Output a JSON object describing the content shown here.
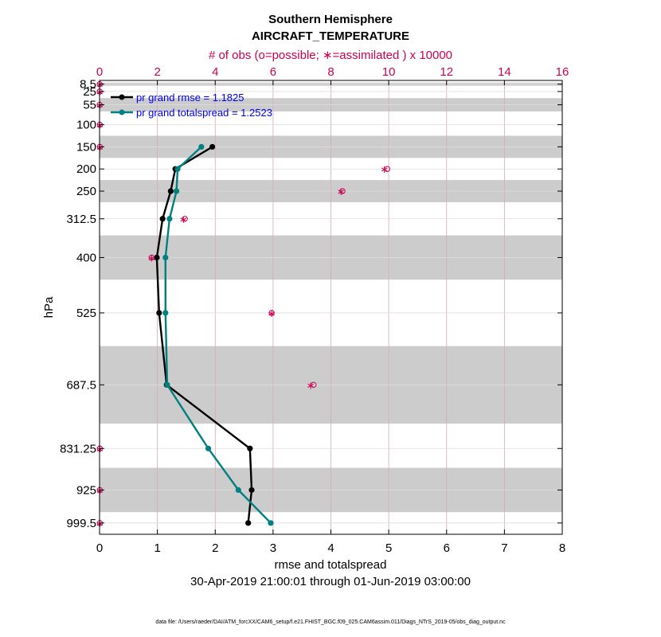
{
  "chart_data": {
    "type": "line",
    "title": "Southern Hemisphere",
    "subtitle": "AIRCRAFT_TEMPERATURE",
    "top_axis_label": "# of obs (o=possible; ∗=assimilated ) x 10000",
    "xlabel": "rmse and totalspread",
    "ylabel": "hPa",
    "date_range": "30-Apr-2019 21:00:01 through 01-Jun-2019 03:00:00",
    "footer": "data file: /Users/raeder/DAI/ATM_forcXX/CAM6_setup/f.e21.FHIST_BGC.f09_025.CAM6assim.011/Diags_NTrS_2019-05/obs_diag_output.nc",
    "xlim": [
      0,
      8
    ],
    "xticks": [
      "0",
      "1",
      "2",
      "3",
      "4",
      "5",
      "6",
      "7",
      "8"
    ],
    "top_xlim": [
      0,
      16
    ],
    "top_xticks": [
      "0",
      "2",
      "4",
      "6",
      "8",
      "10",
      "12",
      "14",
      "16"
    ],
    "ylim_hpa": [
      1025,
      0
    ],
    "levels": [
      {
        "label": "8.5",
        "value": 8.5,
        "rmse": null,
        "spread": null,
        "possible": 0.005,
        "assimilated": 0.005
      },
      {
        "label": "25",
        "value": 25,
        "rmse": null,
        "spread": null,
        "possible": 0.005,
        "assimilated": 0.005
      },
      {
        "label": "55",
        "value": 55,
        "rmse": null,
        "spread": null,
        "possible": 0.005,
        "assimilated": 0.005
      },
      {
        "label": "100",
        "value": 100,
        "rmse": null,
        "spread": null,
        "possible": 0.01,
        "assimilated": 0.01
      },
      {
        "label": "150",
        "value": 150,
        "rmse": 1.95,
        "spread": 1.76,
        "possible": 0.01,
        "assimilated": 0.01
      },
      {
        "label": "200",
        "value": 200,
        "rmse": 1.31,
        "spread": 1.35,
        "possible": 9.95,
        "assimilated": 9.85
      },
      {
        "label": "250",
        "value": 250,
        "rmse": 1.23,
        "spread": 1.33,
        "possible": 8.4,
        "assimilated": 8.35
      },
      {
        "label": "312.5",
        "value": 312.5,
        "rmse": 1.09,
        "spread": 1.21,
        "possible": 2.95,
        "assimilated": 2.9
      },
      {
        "label": "400",
        "value": 400,
        "rmse": 0.99,
        "spread": 1.14,
        "possible": 1.8,
        "assimilated": 1.8
      },
      {
        "label": "525",
        "value": 525,
        "rmse": 1.03,
        "spread": 1.14,
        "possible": 5.95,
        "assimilated": 5.95
      },
      {
        "label": "687.5",
        "value": 687.5,
        "rmse": 1.16,
        "spread": 1.17,
        "possible": 7.4,
        "assimilated": 7.3
      },
      {
        "label": "831.25",
        "value": 831.25,
        "rmse": 2.6,
        "spread": 1.88,
        "possible": 0.01,
        "assimilated": 0.01
      },
      {
        "label": "925",
        "value": 925,
        "rmse": 2.63,
        "spread": 2.4,
        "possible": 0.01,
        "assimilated": 0.01
      },
      {
        "label": "999.5",
        "value": 999.5,
        "rmse": 2.57,
        "spread": 2.96,
        "possible": 0.01,
        "assimilated": 0.01
      }
    ],
    "layer_bands_hpa": [
      [
        5,
        12
      ],
      [
        40,
        70
      ],
      [
        125,
        175
      ],
      [
        225,
        275
      ],
      [
        350,
        450
      ],
      [
        600,
        775
      ],
      [
        875,
        975
      ]
    ],
    "series": [
      {
        "name": "pr grand rmse = 1.1825",
        "key": "rmse",
        "color": "#000000"
      },
      {
        "name": "pr grand totalspread = 1.2523",
        "key": "spread",
        "color": "#008080"
      }
    ],
    "legend_position": "top-left",
    "colors": {
      "obs": "#cc0055",
      "legend_text": "#0000ee",
      "band": "#cccccc",
      "grid": "#d8a8bc"
    }
  }
}
